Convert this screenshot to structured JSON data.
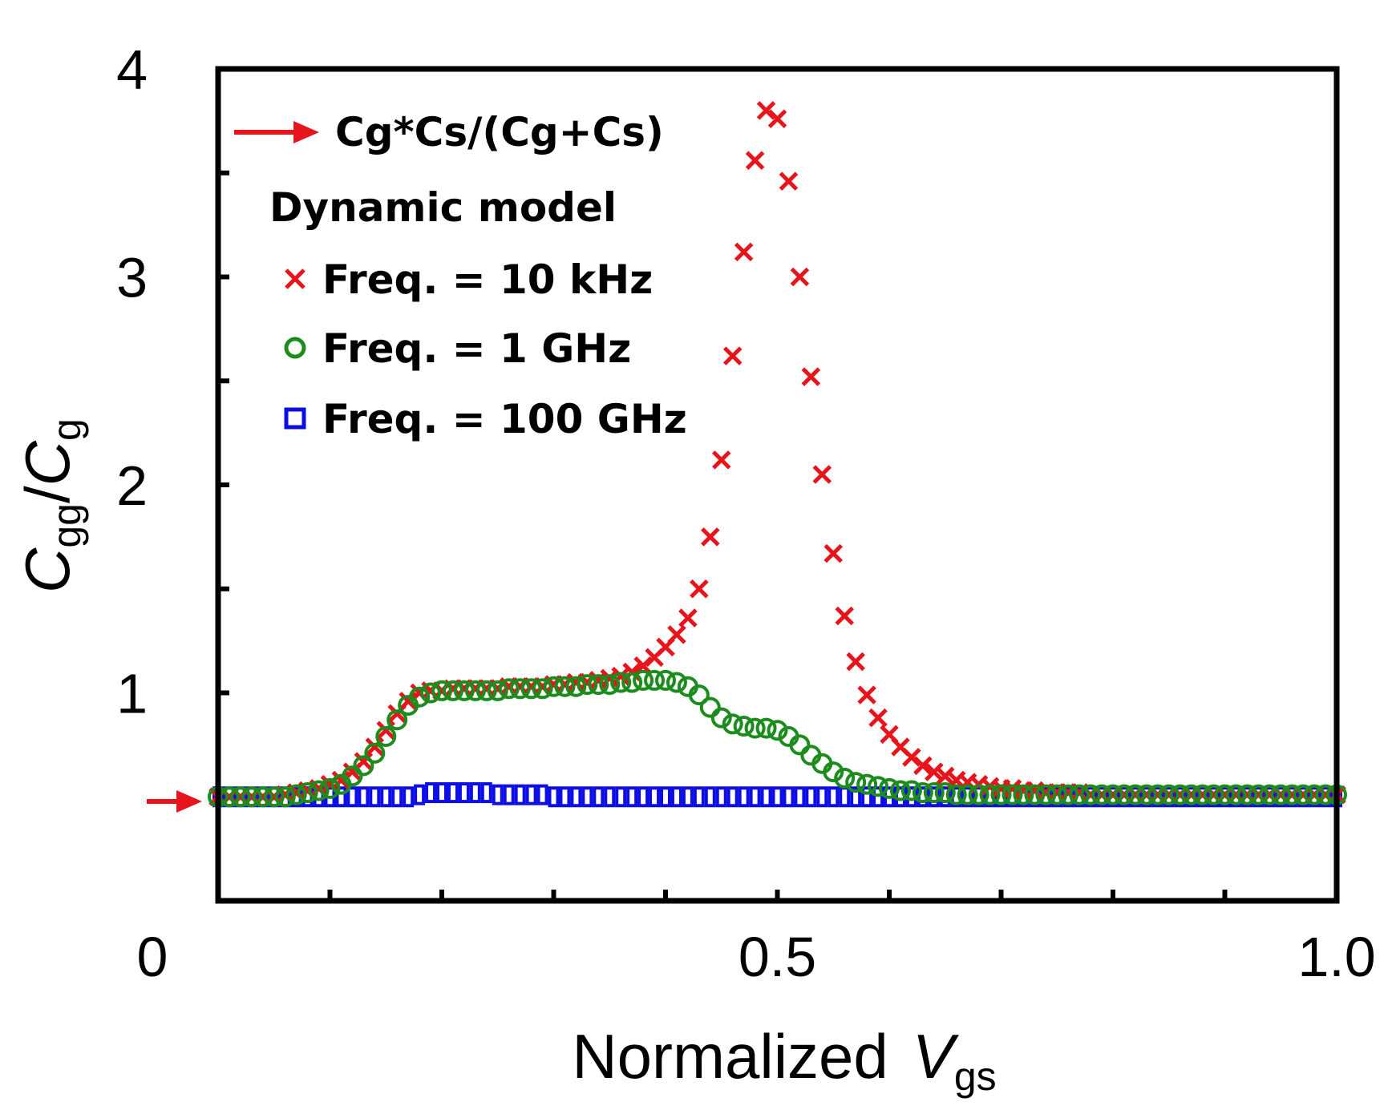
{
  "chart_data": {
    "type": "scatter",
    "title": "",
    "xlabel": {
      "main": "Normalized",
      "var": "V",
      "sub": "gs"
    },
    "ylabel": {
      "num": "C",
      "num_sub": "gg",
      "slash": "/",
      "den": "C",
      "den_sub": "g"
    },
    "xlim": [
      0,
      1.0
    ],
    "ylim": [
      0,
      4
    ],
    "xticks": [
      {
        "v": 0,
        "label": "0"
      },
      {
        "v": 0.5,
        "label": "0.5"
      },
      {
        "v": 1.0,
        "label": "1.0"
      }
    ],
    "yticks": [
      {
        "v": 1,
        "label": "1"
      },
      {
        "v": 2,
        "label": "2"
      },
      {
        "v": 3,
        "label": "3"
      },
      {
        "v": 4,
        "label": "4"
      }
    ],
    "reference": {
      "label": "Cg*Cs/(Cg+Cs)",
      "value": 0.5,
      "color": "#e8141b"
    },
    "legend": {
      "title": "Dynamic model",
      "placement": "top-left"
    },
    "series": [
      {
        "name": "Freq. = 10 kHz",
        "marker": "x",
        "color": "#e8141b",
        "x": [
          0,
          0.01,
          0.02,
          0.03,
          0.04,
          0.05,
          0.06,
          0.07,
          0.08,
          0.09,
          0.1,
          0.11,
          0.12,
          0.13,
          0.14,
          0.15,
          0.16,
          0.17,
          0.18,
          0.19,
          0.2,
          0.21,
          0.22,
          0.23,
          0.24,
          0.25,
          0.26,
          0.27,
          0.28,
          0.29,
          0.3,
          0.31,
          0.32,
          0.33,
          0.34,
          0.35,
          0.36,
          0.37,
          0.38,
          0.39,
          0.4,
          0.41,
          0.42,
          0.43,
          0.44,
          0.45,
          0.46,
          0.47,
          0.48,
          0.49,
          0.5,
          0.51,
          0.52,
          0.53,
          0.54,
          0.55,
          0.56,
          0.57,
          0.58,
          0.59,
          0.6,
          0.61,
          0.62,
          0.63,
          0.64,
          0.65,
          0.66,
          0.67,
          0.68,
          0.69,
          0.7,
          0.71,
          0.72,
          0.73,
          0.74,
          0.75,
          0.76,
          0.77,
          0.78,
          0.79,
          0.8,
          0.81,
          0.82,
          0.83,
          0.84,
          0.85,
          0.86,
          0.87,
          0.88,
          0.89,
          0.9,
          0.91,
          0.92,
          0.93,
          0.94,
          0.95,
          0.96,
          0.97,
          0.98,
          0.99,
          1.0
        ],
        "values": [
          0.5,
          0.5,
          0.5,
          0.5,
          0.5,
          0.5,
          0.51,
          0.52,
          0.53,
          0.54,
          0.56,
          0.58,
          0.62,
          0.67,
          0.74,
          0.82,
          0.9,
          0.96,
          1.0,
          1.01,
          1.01,
          1.02,
          1.02,
          1.02,
          1.02,
          1.02,
          1.03,
          1.03,
          1.03,
          1.03,
          1.04,
          1.04,
          1.05,
          1.05,
          1.06,
          1.07,
          1.08,
          1.1,
          1.13,
          1.17,
          1.22,
          1.28,
          1.36,
          1.5,
          1.75,
          2.12,
          2.62,
          3.12,
          3.56,
          3.8,
          3.76,
          3.46,
          3.0,
          2.52,
          2.05,
          1.67,
          1.37,
          1.15,
          0.99,
          0.88,
          0.8,
          0.74,
          0.69,
          0.65,
          0.62,
          0.6,
          0.58,
          0.57,
          0.56,
          0.55,
          0.54,
          0.54,
          0.53,
          0.53,
          0.52,
          0.52,
          0.52,
          0.52,
          0.51,
          0.51,
          0.51,
          0.51,
          0.51,
          0.51,
          0.51,
          0.51,
          0.51,
          0.51,
          0.51,
          0.51,
          0.51,
          0.51,
          0.51,
          0.51,
          0.51,
          0.51,
          0.51,
          0.51,
          0.51,
          0.51,
          0.51
        ]
      },
      {
        "name": "Freq. = 1 GHz",
        "marker": "o",
        "color": "#1c8c1c",
        "x": [
          0,
          0.01,
          0.02,
          0.03,
          0.04,
          0.05,
          0.06,
          0.07,
          0.08,
          0.09,
          0.1,
          0.11,
          0.12,
          0.13,
          0.14,
          0.15,
          0.16,
          0.17,
          0.18,
          0.19,
          0.2,
          0.21,
          0.22,
          0.23,
          0.24,
          0.25,
          0.26,
          0.27,
          0.28,
          0.29,
          0.3,
          0.31,
          0.32,
          0.33,
          0.34,
          0.35,
          0.36,
          0.37,
          0.38,
          0.39,
          0.4,
          0.41,
          0.42,
          0.43,
          0.44,
          0.45,
          0.46,
          0.47,
          0.48,
          0.49,
          0.5,
          0.51,
          0.52,
          0.53,
          0.54,
          0.55,
          0.56,
          0.57,
          0.58,
          0.59,
          0.6,
          0.61,
          0.62,
          0.63,
          0.64,
          0.65,
          0.66,
          0.67,
          0.68,
          0.69,
          0.7,
          0.71,
          0.72,
          0.73,
          0.74,
          0.75,
          0.76,
          0.77,
          0.78,
          0.79,
          0.8,
          0.81,
          0.82,
          0.83,
          0.84,
          0.85,
          0.86,
          0.87,
          0.88,
          0.89,
          0.9,
          0.91,
          0.92,
          0.93,
          0.94,
          0.95,
          0.96,
          0.97,
          0.98,
          0.99,
          1.0
        ],
        "values": [
          0.5,
          0.5,
          0.5,
          0.5,
          0.5,
          0.5,
          0.5,
          0.51,
          0.52,
          0.53,
          0.54,
          0.56,
          0.6,
          0.65,
          0.71,
          0.79,
          0.87,
          0.94,
          0.98,
          1.0,
          1.01,
          1.01,
          1.01,
          1.01,
          1.01,
          1.01,
          1.02,
          1.02,
          1.02,
          1.02,
          1.03,
          1.03,
          1.03,
          1.04,
          1.04,
          1.04,
          1.05,
          1.05,
          1.06,
          1.06,
          1.06,
          1.05,
          1.03,
          0.99,
          0.93,
          0.88,
          0.85,
          0.84,
          0.83,
          0.83,
          0.82,
          0.79,
          0.75,
          0.7,
          0.66,
          0.62,
          0.59,
          0.57,
          0.56,
          0.55,
          0.54,
          0.53,
          0.53,
          0.52,
          0.52,
          0.52,
          0.51,
          0.51,
          0.51,
          0.51,
          0.51,
          0.51,
          0.51,
          0.51,
          0.51,
          0.51,
          0.51,
          0.51,
          0.51,
          0.51,
          0.51,
          0.51,
          0.51,
          0.51,
          0.51,
          0.51,
          0.51,
          0.51,
          0.51,
          0.51,
          0.51,
          0.51,
          0.51,
          0.51,
          0.51,
          0.51,
          0.51,
          0.51,
          0.51,
          0.51,
          0.51
        ]
      },
      {
        "name": "Freq. = 100 GHz",
        "marker": "square",
        "color": "#0d0de6",
        "x": [
          0,
          0.01,
          0.02,
          0.03,
          0.04,
          0.05,
          0.06,
          0.07,
          0.08,
          0.09,
          0.1,
          0.11,
          0.12,
          0.13,
          0.14,
          0.15,
          0.16,
          0.17,
          0.18,
          0.19,
          0.2,
          0.21,
          0.22,
          0.23,
          0.24,
          0.25,
          0.26,
          0.27,
          0.28,
          0.29,
          0.3,
          0.31,
          0.32,
          0.33,
          0.34,
          0.35,
          0.36,
          0.37,
          0.38,
          0.39,
          0.4,
          0.41,
          0.42,
          0.43,
          0.44,
          0.45,
          0.46,
          0.47,
          0.48,
          0.49,
          0.5,
          0.51,
          0.52,
          0.53,
          0.54,
          0.55,
          0.56,
          0.57,
          0.58,
          0.59,
          0.6,
          0.61,
          0.62,
          0.63,
          0.64,
          0.65,
          0.66,
          0.67,
          0.68,
          0.69,
          0.7,
          0.71,
          0.72,
          0.73,
          0.74,
          0.75,
          0.76,
          0.77,
          0.78,
          0.79,
          0.8,
          0.81,
          0.82,
          0.83,
          0.84,
          0.85,
          0.86,
          0.87,
          0.88,
          0.89,
          0.9,
          0.91,
          0.92,
          0.93,
          0.94,
          0.95,
          0.96,
          0.97,
          0.98,
          0.99,
          1.0
        ],
        "values": [
          0.5,
          0.5,
          0.5,
          0.5,
          0.5,
          0.5,
          0.5,
          0.5,
          0.5,
          0.5,
          0.5,
          0.5,
          0.5,
          0.5,
          0.5,
          0.5,
          0.5,
          0.5,
          0.51,
          0.52,
          0.52,
          0.52,
          0.52,
          0.52,
          0.52,
          0.51,
          0.51,
          0.51,
          0.51,
          0.51,
          0.5,
          0.5,
          0.5,
          0.5,
          0.5,
          0.5,
          0.5,
          0.5,
          0.5,
          0.5,
          0.5,
          0.5,
          0.5,
          0.5,
          0.5,
          0.5,
          0.5,
          0.5,
          0.5,
          0.5,
          0.5,
          0.5,
          0.5,
          0.5,
          0.5,
          0.5,
          0.5,
          0.5,
          0.5,
          0.5,
          0.5,
          0.5,
          0.5,
          0.5,
          0.5,
          0.5,
          0.5,
          0.5,
          0.5,
          0.5,
          0.5,
          0.5,
          0.5,
          0.5,
          0.5,
          0.5,
          0.5,
          0.5,
          0.5,
          0.5,
          0.5,
          0.5,
          0.5,
          0.5,
          0.5,
          0.5,
          0.5,
          0.5,
          0.5,
          0.5,
          0.5,
          0.5,
          0.5,
          0.5,
          0.5,
          0.5,
          0.5,
          0.5,
          0.5,
          0.5,
          0.5
        ]
      }
    ]
  }
}
